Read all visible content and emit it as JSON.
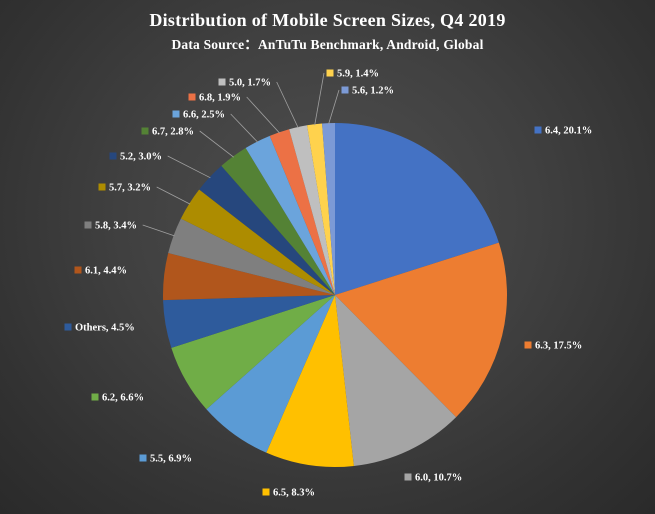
{
  "chart_data": {
    "type": "pie",
    "title": "Distribution of Mobile Screen Sizes, Q4 2019",
    "subtitle": "Data Source：AnTuTu Benchmark, Android, Global",
    "unit": "percent",
    "legend": "none",
    "direction": "clockwise",
    "start_angle_deg": 0,
    "label_format": "{category}, {value}%",
    "categories": [
      "6.4",
      "6.3",
      "6.0",
      "6.5",
      "5.5",
      "6.2",
      "Others",
      "6.1",
      "5.8",
      "5.7",
      "5.2",
      "6.7",
      "6.6",
      "6.8",
      "5.0",
      "5.9",
      "5.6"
    ],
    "values": [
      20.1,
      17.5,
      10.7,
      8.3,
      6.9,
      6.6,
      4.5,
      4.4,
      3.4,
      3.2,
      3.0,
      2.8,
      2.5,
      1.9,
      1.7,
      1.4,
      1.2
    ],
    "colors": [
      "#4472C4",
      "#ED7D31",
      "#A5A5A5",
      "#FFC000",
      "#5B9BD5",
      "#70AD47",
      "#2E5B9C",
      "#B1561C",
      "#7F7F7F",
      "#AD8C00",
      "#26477D",
      "#548235",
      "#6BA4DC",
      "#EC7145",
      "#BFBFBF",
      "#FFD24D",
      "#7C9AD6"
    ],
    "background": {
      "style": "dark-radial",
      "inner": "#4f4f4f",
      "outer": "#2a2a2a"
    },
    "text_color": "#ffffff"
  }
}
